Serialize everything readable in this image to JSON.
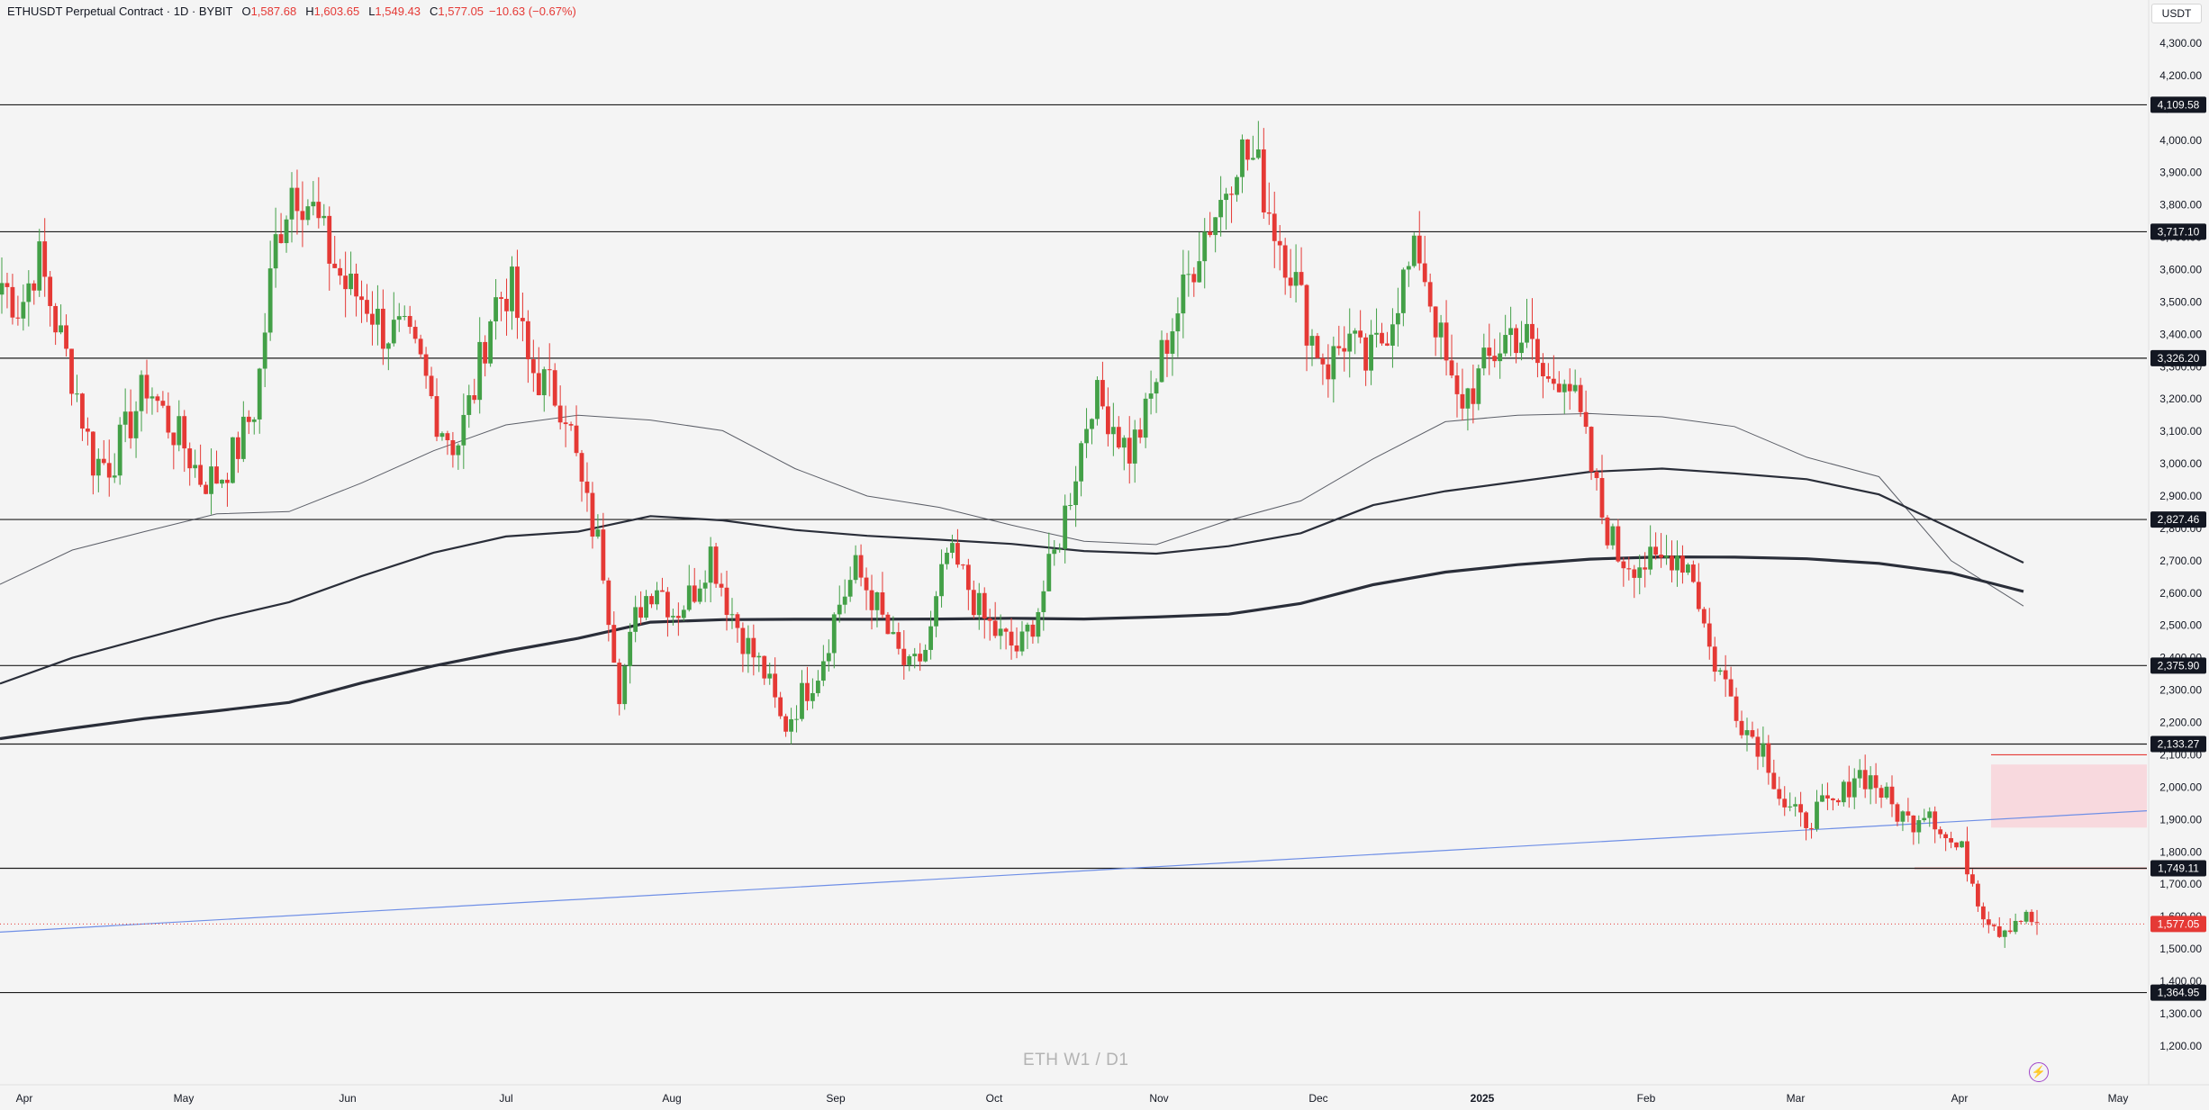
{
  "header": {
    "symbol": "ETHUSDT Perpetual Contract · 1D · BYBIT",
    "o_label": "O",
    "o_value": "1,587.68",
    "h_label": "H",
    "h_value": "1,603.65",
    "l_label": "L",
    "l_value": "1,549.43",
    "c_label": "C",
    "c_value": "1,577.05",
    "change": "−10.63 (−0.67%)"
  },
  "currency": "USDT",
  "watermark": "ETH W1 / D1",
  "colors": {
    "up": "#43a047",
    "down": "#e53935",
    "hline": "#1c1c1c",
    "trendline": "#6f8fe6",
    "zone": "#f8d4d9",
    "ma": "#2a2e39"
  },
  "chart_data": {
    "type": "candlestick",
    "y_axis": {
      "min": 1130,
      "max": 4390,
      "ticks": [
        "1,200.00",
        "1,300.00",
        "1,400.00",
        "1,500.00",
        "1,600.00",
        "1,700.00",
        "1,800.00",
        "1,900.00",
        "2,000.00",
        "2,100.00",
        "2,200.00",
        "2,300.00",
        "2,400.00",
        "2,500.00",
        "2,600.00",
        "2,700.00",
        "2,800.00",
        "2,900.00",
        "3,000.00",
        "3,100.00",
        "3,200.00",
        "3,300.00",
        "3,400.00",
        "3,500.00",
        "3,600.00",
        "3,700.00",
        "3,800.00",
        "3,900.00",
        "4,000.00",
        "4,100.00",
        "4,200.00",
        "4,300.00"
      ]
    },
    "x_axis": {
      "labels": [
        "Apr",
        "May",
        "Jun",
        "Jul",
        "Aug",
        "Sep",
        "Oct",
        "Nov",
        "Dec",
        "2025",
        "Feb",
        "Mar",
        "Apr",
        "May"
      ]
    },
    "horizontal_levels": [
      {
        "value": 4109.58,
        "label": "4,109.58"
      },
      {
        "value": 3717.1,
        "label": "3,717.10"
      },
      {
        "value": 3326.2,
        "label": "3,326.20"
      },
      {
        "value": 2827.46,
        "label": "2,827.46"
      },
      {
        "value": 2375.9,
        "label": "2,375.90"
      },
      {
        "value": 2133.27,
        "label": "2,133.27"
      },
      {
        "value": 1749.11,
        "label": "1,749.11"
      },
      {
        "value": 1364.95,
        "label": "1,364.95"
      }
    ],
    "last_price": {
      "value": 1577.05,
      "label": "1,577.05"
    },
    "supply_zone": {
      "top": 2070,
      "bottom": 1875
    },
    "resistance_ray": 2100,
    "trendline": {
      "start": 1552,
      "end": 1927
    },
    "moving_averages": [
      {
        "points": [
          2627,
          2733,
          2790,
          2845,
          2852,
          2940,
          3040,
          3120,
          3150,
          3135,
          3102,
          2985,
          2900,
          2865,
          2810,
          2760,
          2750,
          2825,
          2885,
          3015,
          3130,
          3150,
          3155,
          3145,
          3115,
          3020,
          2960,
          2700,
          2560
        ]
      },
      {
        "points": [
          2320,
          2400,
          2460,
          2520,
          2572,
          2652,
          2725,
          2775,
          2790,
          2838,
          2825,
          2795,
          2777,
          2765,
          2752,
          2730,
          2722,
          2745,
          2785,
          2872,
          2915,
          2945,
          2975,
          2985,
          2970,
          2952,
          2905,
          2800,
          2694
        ]
      },
      {
        "points": [
          2150,
          2182,
          2212,
          2236,
          2262,
          2322,
          2375,
          2420,
          2460,
          2510,
          2518,
          2519,
          2519,
          2520,
          2522,
          2520,
          2526,
          2535,
          2568,
          2626,
          2665,
          2688,
          2705,
          2712,
          2711,
          2706,
          2692,
          2662,
          2605
        ]
      }
    ],
    "close_path": [
      3560,
      3480,
      3640,
      3430,
      3250,
      3010,
      3000,
      3120,
      3250,
      3140,
      3060,
      2950,
      2960,
      3050,
      3190,
      3670,
      3870,
      3800,
      3650,
      3540,
      3510,
      3410,
      3400,
      3310,
      3140,
      3050,
      3230,
      3490,
      3550,
      3300,
      3240,
      3180,
      2900,
      2720,
      2300,
      2550,
      2640,
      2540,
      2600,
      2730,
      2560,
      2440,
      2350,
      2180,
      2280,
      2370,
      2560,
      2670,
      2580,
      2440,
      2350,
      2440,
      2720,
      2640,
      2520,
      2460,
      2420,
      2550,
      2730,
      2960,
      3210,
      3150,
      3030,
      3150,
      3370,
      3520,
      3700,
      3800,
      3970,
      3930,
      3740,
      3600,
      3400,
      3300,
      3400,
      3300,
      3390,
      3550,
      3660,
      3420,
      3180,
      3240,
      3330,
      3410,
      3380,
      3240,
      3300,
      3100,
      2850,
      2710,
      2700,
      2680,
      2730,
      2680,
      2420,
      2300,
      2180,
      2120,
      1950,
      1890,
      1930,
      1940,
      2050,
      2020,
      1940,
      1890,
      1950,
      1840,
      1790,
      1620,
      1560,
      1600,
      1580
    ]
  }
}
